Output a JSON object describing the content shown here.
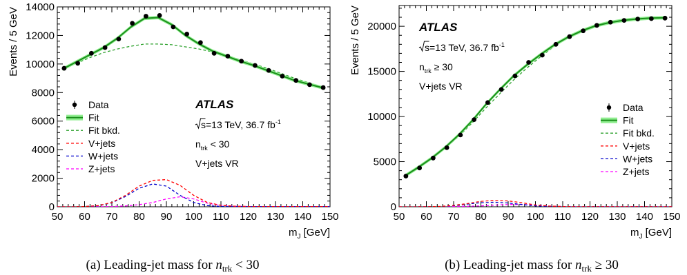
{
  "chart_data": [
    {
      "type": "line",
      "caption": {
        "prefix": "(a) Leading-jet mass for ",
        "var": "n",
        "sub": "trk",
        "rel": " < 30"
      },
      "xlabel": {
        "main": "m",
        "sub": "J",
        "rest": " [GeV]"
      },
      "ylabel": "Events / 5 GeV",
      "xlim": [
        50,
        150
      ],
      "ylim": [
        0,
        14000
      ],
      "xticks": [
        "50",
        "60",
        "70",
        "80",
        "90",
        "100",
        "110",
        "120",
        "130",
        "140",
        "150"
      ],
      "yticks": [
        "0",
        "2000",
        "4000",
        "6000",
        "8000",
        "10000",
        "12000",
        "14000"
      ],
      "atlas_label": "ATLAS",
      "energy": {
        "prefix": "s",
        "middle": "=13 TeV, 36.7 fb",
        "sup": "-1"
      },
      "ntrk": {
        "var": "n",
        "sub": "trk",
        "cut": " < 30"
      },
      "region": "V+jets VR",
      "legend": [
        {
          "label": "Data",
          "kind": "data"
        },
        {
          "label": "Fit",
          "kind": "fit"
        },
        {
          "label": "Fit bkd.",
          "kind": "bkg"
        },
        {
          "label": "V+jets",
          "kind": "vjets"
        },
        {
          "label": "W+jets",
          "kind": "wjets"
        },
        {
          "label": "Z+jets",
          "kind": "zjets"
        }
      ],
      "data_points": {
        "x": [
          52.5,
          57.5,
          62.5,
          67.5,
          72.5,
          77.5,
          82.5,
          87.5,
          92.5,
          97.5,
          102.5,
          107.5,
          112.5,
          117.5,
          122.5,
          127.5,
          132.5,
          137.5,
          142.5,
          147.5
        ],
        "y": [
          9700,
          10050,
          10750,
          11150,
          11750,
          12850,
          13350,
          13400,
          12600,
          12100,
          11500,
          10750,
          10550,
          10200,
          9900,
          9550,
          9150,
          8850,
          8550,
          8350
        ]
      },
      "series": [
        {
          "name": "Fit",
          "kind": "fit",
          "x": [
            52,
            57,
            62,
            67,
            72,
            77,
            82,
            87,
            92,
            97,
            102,
            107,
            112,
            117,
            122,
            127,
            132,
            137,
            142,
            148
          ],
          "y": [
            9650,
            10150,
            10650,
            11150,
            11800,
            12600,
            13200,
            13250,
            12750,
            12000,
            11400,
            10900,
            10550,
            10200,
            9900,
            9550,
            9200,
            8850,
            8600,
            8300
          ]
        },
        {
          "name": "Fit bkd.",
          "kind": "bkg",
          "x": [
            52,
            57,
            62,
            67,
            72,
            77,
            82,
            87,
            92,
            97,
            102,
            107,
            112,
            117,
            122,
            127,
            132,
            137,
            142,
            148
          ],
          "y": [
            9650,
            10050,
            10450,
            10800,
            11050,
            11250,
            11400,
            11400,
            11350,
            11200,
            11050,
            10850,
            10600,
            10300,
            10000,
            9700,
            9350,
            9000,
            8700,
            8300
          ]
        },
        {
          "name": "V+jets",
          "kind": "vjets",
          "x": [
            50,
            55,
            60,
            65,
            70,
            75,
            80,
            85,
            90,
            95,
            100,
            105,
            110,
            115,
            120,
            125,
            130,
            135,
            140,
            145,
            150
          ],
          "y": [
            0,
            0,
            20,
            80,
            300,
            800,
            1450,
            1850,
            1900,
            1500,
            800,
            300,
            100,
            40,
            20,
            20,
            20,
            20,
            20,
            20,
            20
          ]
        },
        {
          "name": "W+jets",
          "kind": "wjets",
          "x": [
            50,
            55,
            60,
            65,
            70,
            75,
            80,
            85,
            90,
            95,
            100,
            105,
            110,
            115,
            120,
            125,
            130,
            135,
            140,
            145,
            150
          ],
          "y": [
            0,
            0,
            20,
            70,
            280,
            720,
            1300,
            1600,
            1450,
            800,
            300,
            80,
            20,
            10,
            10,
            10,
            10,
            10,
            10,
            10,
            10
          ]
        },
        {
          "name": "Z+jets",
          "kind": "zjets",
          "x": [
            50,
            55,
            60,
            65,
            70,
            75,
            80,
            85,
            90,
            95,
            100,
            105,
            110,
            115,
            120,
            125,
            130,
            135,
            140,
            145,
            150
          ],
          "y": [
            0,
            0,
            5,
            10,
            20,
            60,
            150,
            300,
            550,
            700,
            550,
            250,
            100,
            40,
            20,
            20,
            20,
            20,
            20,
            20,
            20
          ]
        }
      ]
    },
    {
      "type": "line",
      "caption": {
        "prefix": "(b) Leading-jet mass for ",
        "var": "n",
        "sub": "trk",
        "rel": " ≥ 30"
      },
      "xlabel": {
        "main": "m",
        "sub": "J",
        "rest": " [GeV]"
      },
      "ylabel": "Events / 5 GeV",
      "xlim": [
        50,
        150
      ],
      "ylim": [
        0,
        22300
      ],
      "xticks": [
        "50",
        "60",
        "70",
        "80",
        "90",
        "100",
        "110",
        "120",
        "130",
        "140",
        "150"
      ],
      "yticks": [
        "0",
        "5000",
        "10000",
        "15000",
        "20000"
      ],
      "atlas_label": "ATLAS",
      "energy": {
        "prefix": "s",
        "middle": "=13 TeV, 36.7 fb",
        "sup": "-1"
      },
      "ntrk": {
        "var": "n",
        "sub": "trk",
        "cut": " ≥ 30"
      },
      "region": "V+jets VR",
      "legend": [
        {
          "label": "Data",
          "kind": "data"
        },
        {
          "label": "Fit",
          "kind": "fit"
        },
        {
          "label": "Fit bkd.",
          "kind": "bkg"
        },
        {
          "label": "V+jets",
          "kind": "vjets"
        },
        {
          "label": "W+jets",
          "kind": "wjets"
        },
        {
          "label": "Z+jets",
          "kind": "zjets"
        }
      ],
      "data_points": {
        "x": [
          52.5,
          57.5,
          62.5,
          67.5,
          72.5,
          77.5,
          82.5,
          87.5,
          92.5,
          97.5,
          102.5,
          107.5,
          112.5,
          117.5,
          122.5,
          127.5,
          132.5,
          137.5,
          142.5,
          147.5
        ],
        "y": [
          3400,
          4300,
          5400,
          6550,
          7950,
          9650,
          11550,
          13000,
          14500,
          16000,
          16800,
          18000,
          18850,
          19500,
          20100,
          20450,
          20650,
          20800,
          20850,
          20900
        ]
      },
      "series": [
        {
          "name": "Fit",
          "kind": "fit",
          "x": [
            52,
            57,
            62,
            67,
            72,
            77,
            82,
            87,
            92,
            97,
            102,
            107,
            112,
            117,
            122,
            127,
            132,
            137,
            142,
            148
          ],
          "y": [
            3400,
            4350,
            5400,
            6600,
            8000,
            9600,
            11400,
            13000,
            14500,
            15750,
            16900,
            17950,
            18800,
            19500,
            20050,
            20400,
            20650,
            20800,
            20900,
            20950
          ]
        },
        {
          "name": "Fit bkd.",
          "kind": "bkg",
          "x": [
            52,
            57,
            62,
            67,
            72,
            77,
            82,
            87,
            92,
            97,
            102,
            107,
            112,
            117,
            122,
            127,
            132,
            137,
            142,
            148
          ],
          "y": [
            3400,
            4300,
            5350,
            6500,
            7850,
            9350,
            11000,
            12550,
            14050,
            15400,
            16650,
            17800,
            18750,
            19500,
            20050,
            20400,
            20650,
            20800,
            20900,
            20950
          ]
        },
        {
          "name": "V+jets",
          "kind": "vjets",
          "x": [
            50,
            55,
            60,
            65,
            70,
            75,
            80,
            85,
            90,
            95,
            100,
            105,
            110,
            115,
            120,
            125,
            130,
            135,
            140,
            145,
            150
          ],
          "y": [
            0,
            0,
            10,
            40,
            150,
            350,
            600,
            700,
            650,
            450,
            200,
            80,
            30,
            10,
            10,
            10,
            10,
            10,
            10,
            10,
            10
          ]
        },
        {
          "name": "W+jets",
          "kind": "wjets",
          "x": [
            50,
            55,
            60,
            65,
            70,
            75,
            80,
            85,
            90,
            95,
            100,
            105,
            110,
            115,
            120,
            125,
            130,
            135,
            140,
            145,
            150
          ],
          "y": [
            0,
            0,
            10,
            30,
            120,
            300,
            450,
            500,
            420,
            250,
            100,
            30,
            10,
            5,
            5,
            5,
            5,
            5,
            5,
            5,
            5
          ]
        },
        {
          "name": "Z+jets",
          "kind": "zjets",
          "x": [
            50,
            55,
            60,
            65,
            70,
            75,
            80,
            85,
            90,
            95,
            100,
            105,
            110,
            115,
            120,
            125,
            130,
            135,
            140,
            145,
            150
          ],
          "y": [
            0,
            0,
            5,
            10,
            20,
            50,
            100,
            180,
            250,
            250,
            180,
            80,
            30,
            10,
            5,
            5,
            5,
            5,
            5,
            5,
            5
          ]
        }
      ]
    }
  ],
  "colors": {
    "fit": "#1a8f1a",
    "fit_band": "#90ee90",
    "bkg": "#2ca02c",
    "vjets": "#ff0000",
    "wjets": "#0000cc",
    "zjets": "#ff00ff",
    "data": "#000000"
  }
}
